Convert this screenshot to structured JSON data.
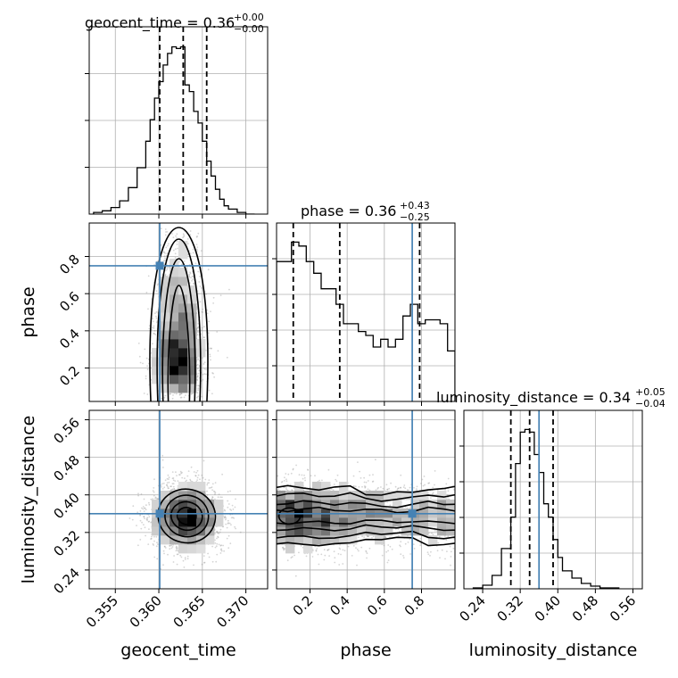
{
  "chart_data": {
    "type": "corner",
    "parameters": [
      "geocent_time",
      "phase",
      "luminosity_distance"
    ],
    "truth_color": "#4682b4",
    "titles": [
      {
        "param": "geocent_time",
        "prefix": "geocent_time = ",
        "value": "0.36",
        "plus": "+0.00",
        "minus": "−0.00"
      },
      {
        "param": "phase",
        "prefix": "phase = ",
        "value": "0.36",
        "plus": "+0.43",
        "minus": "−0.25"
      },
      {
        "param": "luminosity_distance",
        "prefix": "luminosity_distance = ",
        "value": "0.34",
        "plus": "+0.05",
        "minus": "−0.04"
      }
    ],
    "axes": {
      "geocent_time": {
        "range": [
          0.352,
          0.3725
        ],
        "ticks": [
          0.355,
          0.36,
          0.365,
          0.37
        ],
        "tick_labels": [
          "0.355",
          "0.360",
          "0.365",
          "0.370"
        ]
      },
      "phase": {
        "range": [
          0.02,
          0.98
        ],
        "ticks": [
          0.2,
          0.4,
          0.6,
          0.8
        ],
        "tick_labels": [
          "0.2",
          "0.4",
          "0.6",
          "0.8"
        ]
      },
      "luminosity_distance": {
        "range": [
          0.2,
          0.58
        ],
        "ticks": [
          0.24,
          0.32,
          0.4,
          0.48,
          0.56
        ],
        "tick_labels": [
          "0.24",
          "0.32",
          "0.40",
          "0.48",
          "0.56"
        ]
      }
    },
    "truths": {
      "geocent_time": 0.3601,
      "phase": 0.75,
      "luminosity_distance": 0.36
    },
    "quantiles": {
      "geocent_time": [
        0.3601,
        0.3628,
        0.3655
      ],
      "phase": [
        0.11,
        0.36,
        0.79
      ],
      "luminosity_distance": [
        0.3,
        0.34,
        0.39
      ]
    },
    "histograms": {
      "geocent_time": {
        "edges": [
          0.3525,
          0.3535,
          0.3545,
          0.3555,
          0.3565,
          0.3575,
          0.3585,
          0.359,
          0.3595,
          0.36,
          0.3605,
          0.361,
          0.3615,
          0.362,
          0.3625,
          0.363,
          0.3635,
          0.364,
          0.3645,
          0.365,
          0.3655,
          0.366,
          0.3665,
          0.367,
          0.3675,
          0.368,
          0.369,
          0.37,
          0.371
        ],
        "counts": [
          1,
          2,
          4,
          8,
          16,
          28,
          44,
          57,
          70,
          80,
          90,
          97,
          101,
          100,
          101,
          78,
          74,
          62,
          55,
          44,
          32,
          23,
          15,
          9,
          5,
          3,
          1,
          0
        ]
      },
      "phase": {
        "edges": [
          0.02,
          0.06,
          0.1,
          0.14,
          0.18,
          0.22,
          0.26,
          0.3,
          0.34,
          0.38,
          0.42,
          0.46,
          0.5,
          0.54,
          0.58,
          0.62,
          0.66,
          0.7,
          0.74,
          0.78,
          0.82,
          0.86,
          0.9,
          0.94,
          0.98
        ],
        "counts": [
          72,
          72,
          82,
          80,
          72,
          66,
          58,
          58,
          50,
          40,
          40,
          36,
          34,
          28,
          32,
          28,
          32,
          44,
          50,
          40,
          42,
          42,
          40,
          26
        ]
      },
      "luminosity_distance": {
        "edges": [
          0.22,
          0.24,
          0.26,
          0.28,
          0.3,
          0.31,
          0.32,
          0.33,
          0.34,
          0.35,
          0.36,
          0.37,
          0.38,
          0.39,
          0.4,
          0.41,
          0.43,
          0.45,
          0.47,
          0.49,
          0.51,
          0.53
        ],
        "counts": [
          1,
          4,
          15,
          45,
          80,
          140,
          175,
          178,
          175,
          150,
          130,
          95,
          80,
          55,
          35,
          20,
          12,
          6,
          3,
          1,
          1
        ]
      }
    },
    "contours_2d": {
      "phase_vs_geocent_time": {
        "center": [
          0.3623,
          0.13
        ],
        "levels_sigma_x": [
          0.0012,
          0.0018,
          0.0024,
          0.0032
        ],
        "y_range": [
          0.02,
          0.98
        ]
      },
      "luminosity_distance_vs_geocent_time": {
        "center": [
          0.3632,
          0.355
        ],
        "levels_sigma": [
          [
            0.0011,
            0.018
          ],
          [
            0.0018,
            0.03
          ],
          [
            0.0025,
            0.044
          ],
          [
            0.0033,
            0.057
          ]
        ]
      },
      "luminosity_distance_vs_phase": {
        "center_y": 0.355,
        "levels_half_width": [
          0.014,
          0.028,
          0.045,
          0.06
        ]
      }
    }
  }
}
